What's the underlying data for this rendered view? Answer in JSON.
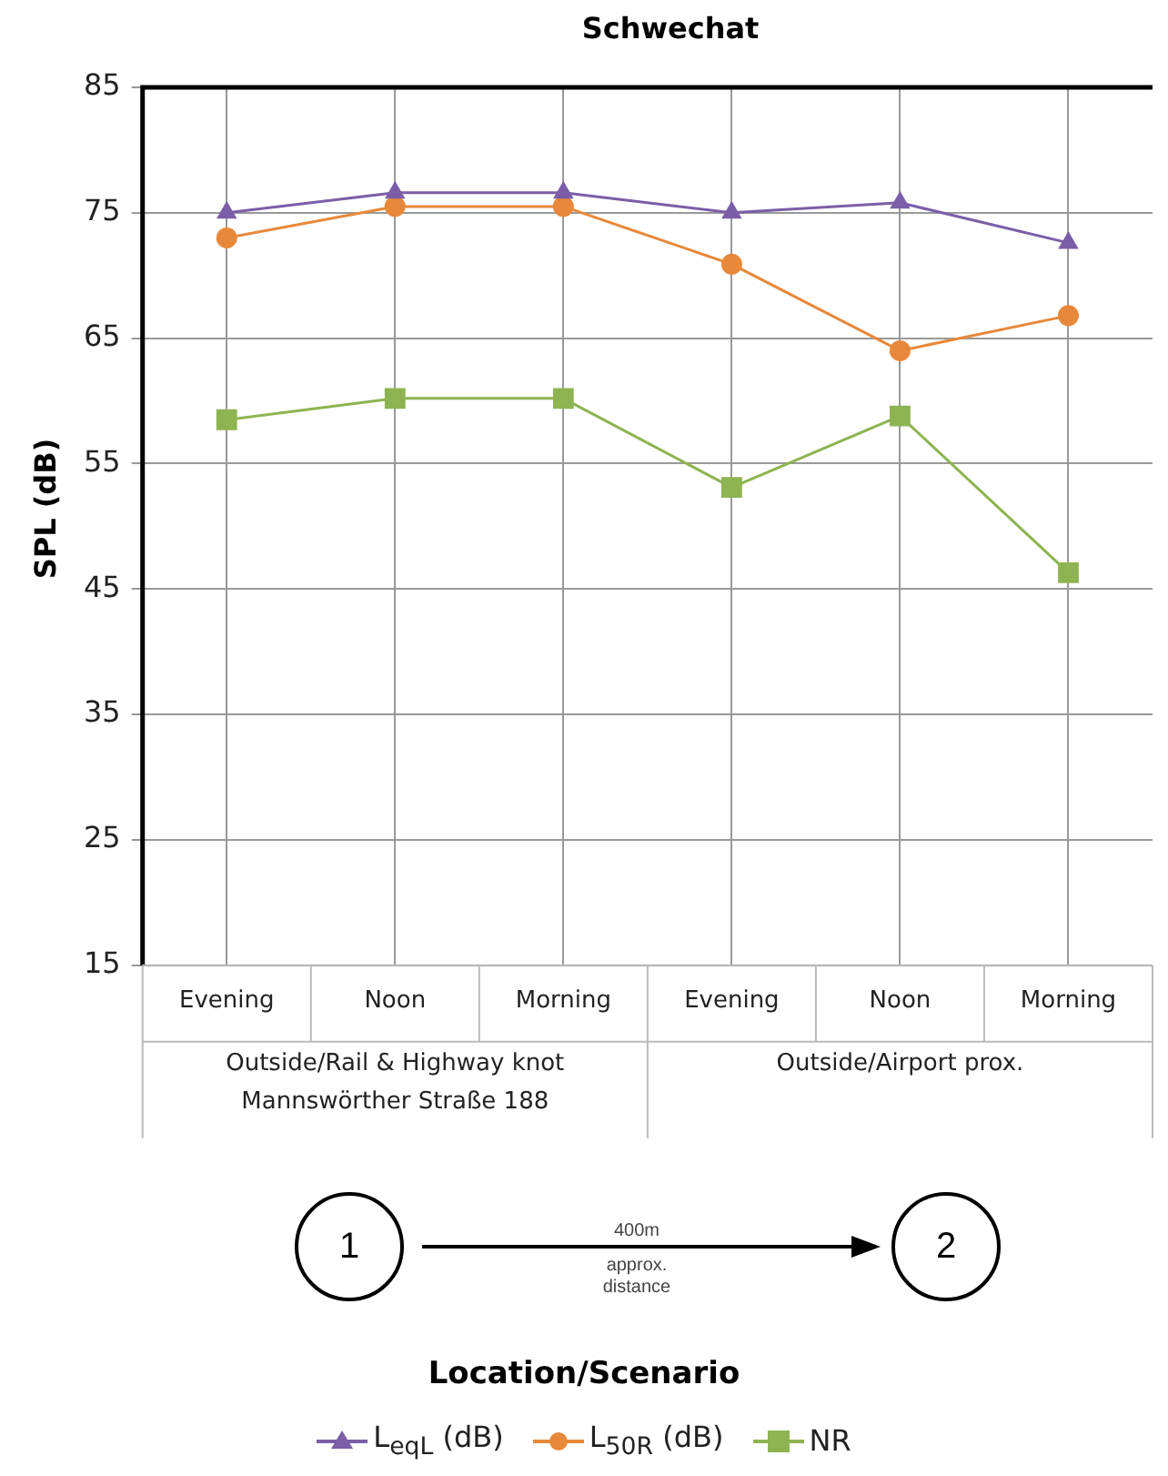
{
  "chart_data": {
    "type": "line",
    "title": "Schwechat",
    "ylabel": "SPL (dB)",
    "categories": [
      "Evening",
      "Noon",
      "Morning",
      "Evening",
      "Noon",
      "Morning"
    ],
    "series": [
      {
        "name": "L$_{eqL}$ (dB)",
        "color": "#7b5ea7",
        "marker": "triangle",
        "values": [
          75,
          76.6,
          76.6,
          75,
          75.8,
          72.6
        ]
      },
      {
        "name": "L$_{50R}$ (dB)",
        "color": "#e8883a",
        "marker": "circle",
        "values": [
          73,
          75.5,
          75.5,
          70.9,
          64,
          66.8
        ]
      },
      {
        "name": "NR",
        "color": "#8db451",
        "marker": "square",
        "values": [
          58.5,
          60.2,
          60.2,
          53.1,
          58.8,
          46.3
        ]
      }
    ],
    "ylim": [
      15,
      85
    ],
    "yticks": [
      15,
      25,
      35,
      45,
      55,
      65,
      75,
      85
    ],
    "grid": true,
    "legend": "bottom",
    "line_style": "solid",
    "annotations": [
      "Outside/Rail & Highway knot\nMannswörther Straße 188",
      "Outside/Airport prox.",
      "1",
      "400m\napprox.\ndistance",
      "2",
      "Location/Scenario"
    ]
  }
}
